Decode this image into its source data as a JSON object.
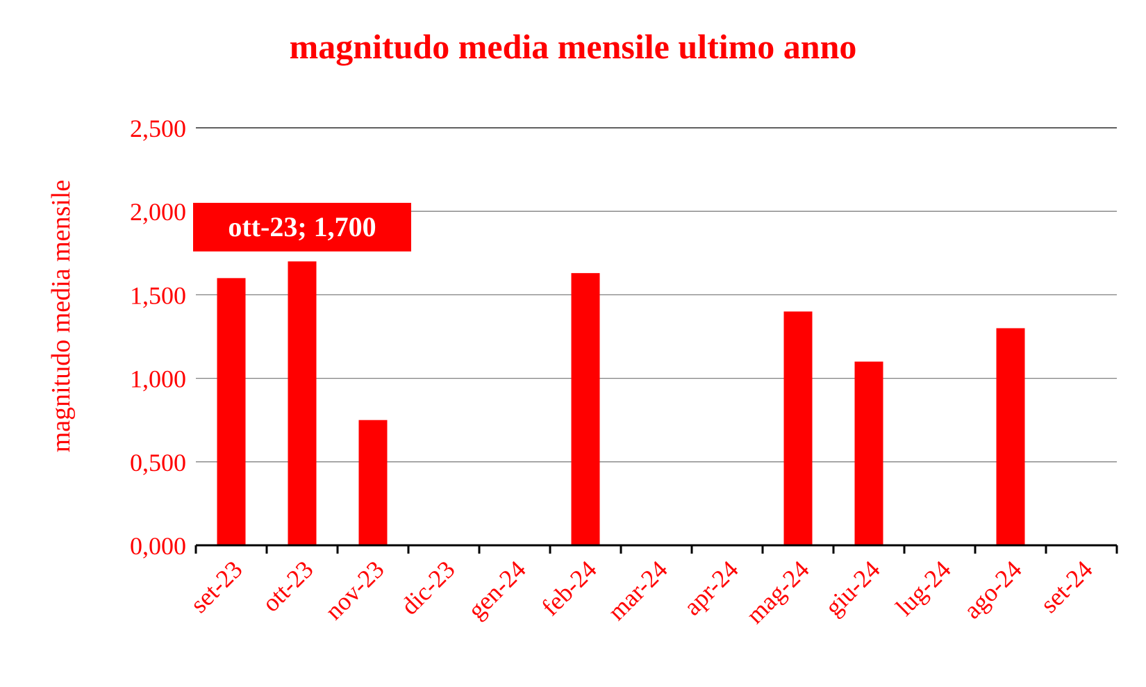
{
  "chart_data": {
    "type": "bar",
    "title": "magnitudo media mensile ultimo anno",
    "xlabel": "",
    "ylabel": "magnitudo media mensile",
    "categories": [
      "set-23",
      "ott-23",
      "nov-23",
      "dic-23",
      "gen-24",
      "feb-24",
      "mar-24",
      "apr-24",
      "mag-24",
      "giu-24",
      "lug-24",
      "ago-24",
      "set-24"
    ],
    "values": [
      1.6,
      1.7,
      0.75,
      0,
      0,
      1.63,
      0,
      0,
      1.4,
      1.1,
      0,
      1.3,
      0
    ],
    "ylim": [
      0,
      2.5
    ],
    "yticks": [
      0,
      0.5,
      1,
      1.5,
      2,
      2.5
    ],
    "ytick_labels": [
      "0,000",
      "0,500",
      "1,000",
      "1,500",
      "2,000",
      "2,500"
    ],
    "grid": true,
    "legend": "none",
    "annotation": {
      "category": "ott-23",
      "text": "ott-23; 1,700"
    },
    "colors": {
      "bar": "#ff0000",
      "text": "#ff0000",
      "grid": "#808080",
      "axis": "#000000",
      "callout_bg": "#ff0000",
      "callout_text": "#ffffff"
    }
  }
}
